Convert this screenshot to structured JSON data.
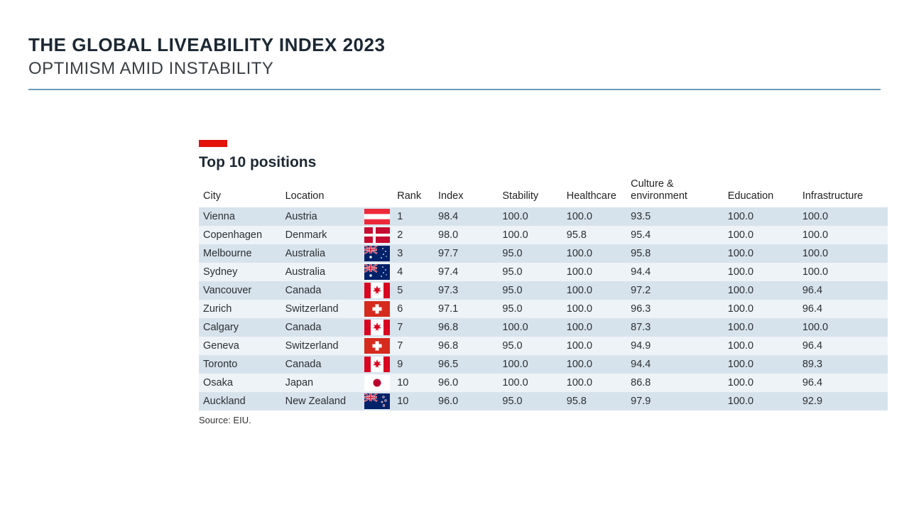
{
  "header": {
    "title": "THE GLOBAL LIVEABILITY INDEX 2023",
    "subtitle": "OPTIMISM AMID INSTABILITY"
  },
  "section": {
    "title": "Top 10 positions",
    "source": "Source: EIU.",
    "accent_color": "#e3120b"
  },
  "columns": {
    "city": "City",
    "location": "Location",
    "rank": "Rank",
    "index": "Index",
    "stability": "Stability",
    "healthcare": "Healthcare",
    "culture": "Culture & environment",
    "education": "Education",
    "infrastructure": "Infrastructure"
  },
  "rows": [
    {
      "city": "Vienna",
      "location": "Austria",
      "flag": "at",
      "rank": "1",
      "index": "98.4",
      "stability": "100.0",
      "healthcare": "100.0",
      "culture": "93.5",
      "education": "100.0",
      "infra": "100.0"
    },
    {
      "city": "Copenhagen",
      "location": "Denmark",
      "flag": "dk",
      "rank": "2",
      "index": "98.0",
      "stability": "100.0",
      "healthcare": "95.8",
      "culture": "95.4",
      "education": "100.0",
      "infra": "100.0"
    },
    {
      "city": "Melbourne",
      "location": "Australia",
      "flag": "au",
      "rank": "3",
      "index": "97.7",
      "stability": "95.0",
      "healthcare": "100.0",
      "culture": "95.8",
      "education": "100.0",
      "infra": "100.0"
    },
    {
      "city": "Sydney",
      "location": "Australia",
      "flag": "au",
      "rank": "4",
      "index": "97.4",
      "stability": "95.0",
      "healthcare": "100.0",
      "culture": "94.4",
      "education": "100.0",
      "infra": "100.0"
    },
    {
      "city": "Vancouver",
      "location": "Canada",
      "flag": "ca",
      "rank": "5",
      "index": "97.3",
      "stability": "95.0",
      "healthcare": "100.0",
      "culture": "97.2",
      "education": "100.0",
      "infra": "96.4"
    },
    {
      "city": "Zurich",
      "location": "Switzerland",
      "flag": "ch",
      "rank": "6",
      "index": "97.1",
      "stability": "95.0",
      "healthcare": "100.0",
      "culture": "96.3",
      "education": "100.0",
      "infra": "96.4"
    },
    {
      "city": "Calgary",
      "location": "Canada",
      "flag": "ca",
      "rank": "7",
      "index": "96.8",
      "stability": "100.0",
      "healthcare": "100.0",
      "culture": "87.3",
      "education": "100.0",
      "infra": "100.0"
    },
    {
      "city": "Geneva",
      "location": "Switzerland",
      "flag": "ch",
      "rank": "7",
      "index": "96.8",
      "stability": "95.0",
      "healthcare": "100.0",
      "culture": "94.9",
      "education": "100.0",
      "infra": "96.4"
    },
    {
      "city": "Toronto",
      "location": "Canada",
      "flag": "ca",
      "rank": "9",
      "index": "96.5",
      "stability": "100.0",
      "healthcare": "100.0",
      "culture": "94.4",
      "education": "100.0",
      "infra": "89.3"
    },
    {
      "city": "Osaka",
      "location": "Japan",
      "flag": "jp",
      "rank": "10",
      "index": "96.0",
      "stability": "100.0",
      "healthcare": "100.0",
      "culture": "86.8",
      "education": "100.0",
      "infra": "96.4"
    },
    {
      "city": "Auckland",
      "location": "New Zealand",
      "flag": "nz",
      "rank": "10",
      "index": "96.0",
      "stability": "95.0",
      "healthcare": "95.8",
      "culture": "97.9",
      "education": "100.0",
      "infra": "92.9"
    }
  ],
  "style": {
    "row_even_bg": "#d7e3ec",
    "row_odd_bg": "#eef3f7",
    "hr_color": "#6b9bb5",
    "text_color": "#2b2f33",
    "title_color": "#1c2833",
    "background": "#ffffff",
    "font_size_body": 14.5,
    "font_size_title": 26,
    "font_size_subtitle": 24,
    "font_size_section": 21
  }
}
